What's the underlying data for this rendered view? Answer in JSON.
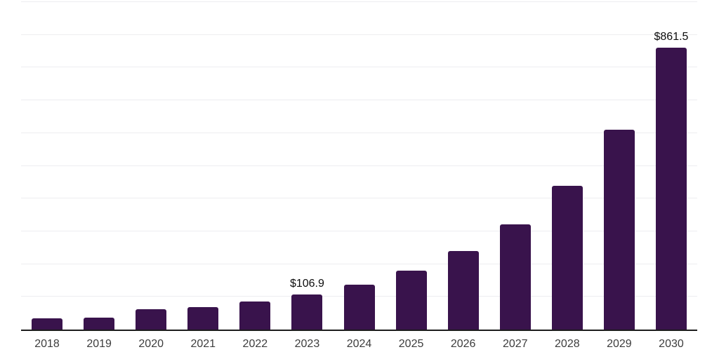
{
  "chart_data": {
    "type": "bar",
    "categories": [
      "2018",
      "2019",
      "2020",
      "2021",
      "2022",
      "2023",
      "2024",
      "2025",
      "2026",
      "2027",
      "2028",
      "2029",
      "2030"
    ],
    "values": [
      33.5,
      35.5,
      62.5,
      68,
      85.5,
      106.9,
      137,
      180,
      239,
      322,
      438,
      611,
      861.5
    ],
    "data_labels": {
      "2023": "$106.9",
      "2030": "$861.5"
    },
    "x_tick_labels": [
      "2018",
      "2019",
      "2020",
      "2021",
      "2022",
      "2023",
      "2024",
      "2025",
      "2026",
      "2027",
      "2028",
      "2029",
      "2030"
    ],
    "ylim": [
      0,
      1000
    ],
    "grid_step": 100,
    "grid_on": true,
    "legend": "none",
    "colors": {
      "bar": "#39134c",
      "grid": "#ededf0",
      "axis": "#1c1c1c",
      "x_tick_label": "#3d3d3d",
      "value_label": "#0d0d0d",
      "background": "#ffffff"
    }
  }
}
